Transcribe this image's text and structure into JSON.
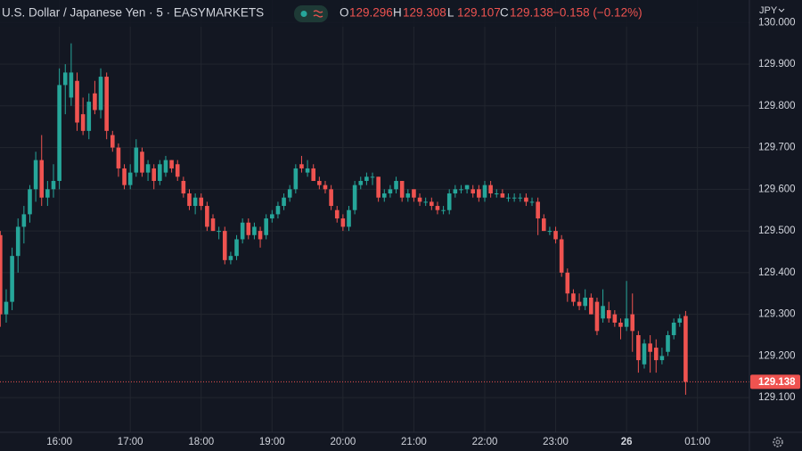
{
  "chart_data": {
    "type": "candlestick",
    "title": "U.S. Dollar / Japanese Yen · 5 · EASYMARKETS",
    "currency": "JPY",
    "ohlc_legend": [
      {
        "label": "O",
        "value": 129.296
      },
      {
        "label": "H",
        "value": 129.308
      },
      {
        "label": "L",
        "value": 129.107
      },
      {
        "label": "C",
        "value": 129.138
      }
    ],
    "change": "−0.158 (−0.12%)",
    "last_price": 129.138,
    "up_color": "#26a69a",
    "down_color": "#ef5350",
    "grid": true,
    "ylim": [
      129.017,
      130.054
    ],
    "yticks": [
      {
        "value": 129.1,
        "label": "129.100"
      },
      {
        "value": 129.2,
        "label": "129.200"
      },
      {
        "value": 129.3,
        "label": "129.300"
      },
      {
        "value": 129.4,
        "label": "129.400"
      },
      {
        "value": 129.5,
        "label": "129.500"
      },
      {
        "value": 129.6,
        "label": "129.600"
      },
      {
        "value": 129.7,
        "label": "129.700"
      },
      {
        "value": 129.8,
        "label": "129.800"
      },
      {
        "value": 129.9,
        "label": "129.900"
      },
      {
        "value": 130.0,
        "label": "130.000"
      }
    ],
    "categories": [
      null,
      null,
      null,
      null,
      null,
      null,
      null,
      null,
      null,
      null,
      "16:00",
      null,
      null,
      null,
      null,
      null,
      null,
      null,
      null,
      null,
      null,
      null,
      "17:00",
      null,
      null,
      null,
      null,
      null,
      null,
      null,
      null,
      null,
      null,
      null,
      "18:00",
      null,
      null,
      null,
      null,
      null,
      null,
      null,
      null,
      null,
      null,
      null,
      "19:00",
      null,
      null,
      null,
      null,
      null,
      null,
      null,
      null,
      null,
      null,
      null,
      "20:00",
      null,
      null,
      null,
      null,
      null,
      null,
      null,
      null,
      null,
      null,
      null,
      "21:00",
      null,
      null,
      null,
      null,
      null,
      null,
      null,
      null,
      null,
      null,
      null,
      "22:00",
      null,
      null,
      null,
      null,
      null,
      null,
      null,
      null,
      null,
      null,
      null,
      "23:00",
      null,
      null,
      null,
      null,
      null,
      null,
      null,
      null,
      null,
      null,
      null,
      "26",
      null,
      null,
      null,
      null,
      null,
      null,
      null,
      null,
      null,
      null,
      null,
      "01:00"
    ],
    "candles": [
      [
        129.49,
        129.5,
        129.27,
        129.3
      ],
      [
        129.3,
        129.36,
        129.28,
        129.33
      ],
      [
        129.33,
        129.46,
        129.31,
        129.44
      ],
      [
        129.44,
        129.53,
        129.4,
        129.51
      ],
      [
        129.51,
        129.56,
        129.47,
        129.54
      ],
      [
        129.54,
        129.61,
        129.52,
        129.6
      ],
      [
        129.6,
        129.69,
        129.57,
        129.67
      ],
      [
        129.67,
        129.73,
        129.56,
        129.58
      ],
      [
        129.58,
        129.62,
        129.56,
        129.6
      ],
      [
        129.6,
        129.66,
        129.58,
        129.62
      ],
      [
        129.62,
        129.89,
        129.6,
        129.85
      ],
      [
        129.85,
        129.9,
        129.78,
        129.88
      ],
      [
        129.82,
        129.95,
        129.8,
        129.88
      ],
      [
        129.86,
        129.88,
        129.74,
        129.76
      ],
      [
        129.78,
        129.82,
        129.73,
        129.74
      ],
      [
        129.74,
        129.83,
        129.72,
        129.81
      ],
      [
        129.83,
        129.86,
        129.78,
        129.79
      ],
      [
        129.79,
        129.89,
        129.77,
        129.87
      ],
      [
        129.87,
        129.88,
        129.72,
        129.74
      ],
      [
        129.73,
        129.74,
        129.69,
        129.7
      ],
      [
        129.7,
        129.71,
        129.63,
        129.65
      ],
      [
        129.65,
        129.66,
        129.6,
        129.61
      ],
      [
        129.61,
        129.66,
        129.6,
        129.64
      ],
      [
        129.64,
        129.72,
        129.63,
        129.7
      ],
      [
        129.69,
        129.7,
        129.63,
        129.64
      ],
      [
        129.64,
        129.67,
        129.62,
        129.66
      ],
      [
        129.65,
        129.66,
        129.6,
        129.62
      ],
      [
        129.62,
        129.67,
        129.61,
        129.66
      ],
      [
        129.64,
        129.68,
        129.63,
        129.67
      ],
      [
        129.67,
        129.67,
        129.64,
        129.65
      ],
      [
        129.66,
        129.67,
        129.62,
        129.63
      ],
      [
        129.62,
        129.63,
        129.58,
        129.59
      ],
      [
        129.59,
        129.6,
        129.55,
        129.56
      ],
      [
        129.56,
        129.59,
        129.54,
        129.58
      ],
      [
        129.58,
        129.59,
        129.55,
        129.56
      ],
      [
        129.56,
        129.57,
        129.5,
        129.51
      ],
      [
        129.53,
        129.54,
        129.5,
        129.5
      ],
      [
        129.5,
        129.51,
        129.48,
        129.5
      ],
      [
        129.5,
        129.51,
        129.42,
        129.43
      ],
      [
        129.43,
        129.45,
        129.42,
        129.44
      ],
      [
        129.44,
        129.49,
        129.43,
        129.48
      ],
      [
        129.48,
        129.53,
        129.47,
        129.52
      ],
      [
        129.52,
        129.53,
        129.48,
        129.49
      ],
      [
        129.49,
        129.52,
        129.48,
        129.51
      ],
      [
        129.5,
        129.51,
        129.46,
        129.48
      ],
      [
        129.49,
        129.54,
        129.48,
        129.53
      ],
      [
        129.53,
        129.55,
        129.52,
        129.54
      ],
      [
        129.54,
        129.57,
        129.53,
        129.56
      ],
      [
        129.56,
        129.59,
        129.55,
        129.58
      ],
      [
        129.58,
        129.61,
        129.57,
        129.6
      ],
      [
        129.6,
        129.66,
        129.59,
        129.65
      ],
      [
        129.66,
        129.68,
        129.64,
        129.65
      ],
      [
        129.64,
        129.67,
        129.63,
        129.65
      ],
      [
        129.65,
        129.66,
        129.62,
        129.62
      ],
      [
        129.62,
        129.63,
        129.6,
        129.61
      ],
      [
        129.61,
        129.62,
        129.59,
        129.6
      ],
      [
        129.6,
        129.61,
        129.55,
        129.56
      ],
      [
        129.55,
        129.56,
        129.52,
        129.53
      ],
      [
        129.53,
        129.54,
        129.5,
        129.51
      ],
      [
        129.51,
        129.56,
        129.5,
        129.55
      ],
      [
        129.55,
        129.62,
        129.54,
        129.61
      ],
      [
        129.61,
        129.63,
        129.6,
        129.62
      ],
      [
        129.62,
        129.64,
        129.61,
        129.63
      ],
      [
        129.63,
        129.64,
        129.61,
        129.63
      ],
      [
        129.63,
        129.63,
        129.57,
        129.58
      ],
      [
        129.58,
        129.6,
        129.57,
        129.59
      ],
      [
        129.59,
        129.61,
        129.58,
        129.6
      ],
      [
        129.6,
        129.63,
        129.59,
        129.62
      ],
      [
        129.62,
        129.62,
        129.57,
        129.58
      ],
      [
        129.58,
        129.6,
        129.57,
        129.59
      ],
      [
        129.6,
        129.6,
        129.57,
        129.58
      ],
      [
        129.58,
        129.59,
        129.56,
        129.57
      ],
      [
        129.57,
        129.58,
        129.56,
        129.57
      ],
      [
        129.57,
        129.58,
        129.55,
        129.56
      ],
      [
        129.56,
        129.57,
        129.54,
        129.55
      ],
      [
        129.55,
        129.56,
        129.54,
        129.55
      ],
      [
        129.55,
        129.6,
        129.54,
        129.59
      ],
      [
        129.59,
        129.61,
        129.58,
        129.6
      ],
      [
        129.6,
        129.61,
        129.59,
        129.6
      ],
      [
        129.6,
        129.61,
        129.59,
        129.61
      ],
      [
        129.6,
        129.61,
        129.58,
        129.59
      ],
      [
        129.6,
        129.61,
        129.57,
        129.58
      ],
      [
        129.58,
        129.62,
        129.57,
        129.61
      ],
      [
        129.61,
        129.62,
        129.58,
        129.59
      ],
      [
        129.59,
        129.6,
        129.58,
        129.59
      ],
      [
        129.59,
        129.6,
        129.58,
        129.58
      ],
      [
        129.58,
        129.59,
        129.57,
        129.58
      ],
      [
        129.58,
        129.59,
        129.57,
        129.58
      ],
      [
        129.58,
        129.59,
        129.57,
        129.58
      ],
      [
        129.58,
        129.59,
        129.56,
        129.57
      ],
      [
        129.57,
        129.58,
        129.56,
        129.57
      ],
      [
        129.57,
        129.58,
        129.49,
        129.53
      ],
      [
        129.53,
        129.54,
        129.5,
        129.5
      ],
      [
        129.5,
        129.51,
        129.49,
        129.5
      ],
      [
        129.5,
        129.51,
        129.47,
        129.48
      ],
      [
        129.48,
        129.49,
        129.39,
        129.4
      ],
      [
        129.4,
        129.41,
        129.33,
        129.35
      ],
      [
        129.35,
        129.36,
        129.32,
        129.33
      ],
      [
        129.33,
        129.35,
        129.31,
        129.32
      ],
      [
        129.32,
        129.36,
        129.31,
        129.34
      ],
      [
        129.34,
        129.35,
        129.3,
        129.3
      ],
      [
        129.33,
        129.34,
        129.25,
        129.26
      ],
      [
        129.29,
        129.36,
        129.28,
        129.32
      ],
      [
        129.31,
        129.33,
        129.28,
        129.29
      ],
      [
        129.3,
        129.31,
        129.27,
        129.28
      ],
      [
        129.28,
        129.29,
        129.24,
        129.27
      ],
      [
        129.27,
        129.38,
        129.26,
        129.29
      ],
      [
        129.3,
        129.35,
        129.21,
        129.26
      ],
      [
        129.25,
        129.26,
        129.16,
        129.19
      ],
      [
        129.18,
        129.24,
        129.17,
        129.23
      ],
      [
        129.23,
        129.25,
        129.16,
        129.21
      ],
      [
        129.22,
        129.24,
        129.16,
        129.19
      ],
      [
        129.19,
        129.22,
        129.18,
        129.2
      ],
      [
        129.21,
        129.26,
        129.2,
        129.25
      ],
      [
        129.25,
        129.29,
        129.24,
        129.28
      ],
      [
        129.28,
        129.3,
        129.27,
        129.29
      ],
      [
        129.296,
        129.308,
        129.107,
        129.138
      ],
      null,
      null
    ]
  }
}
